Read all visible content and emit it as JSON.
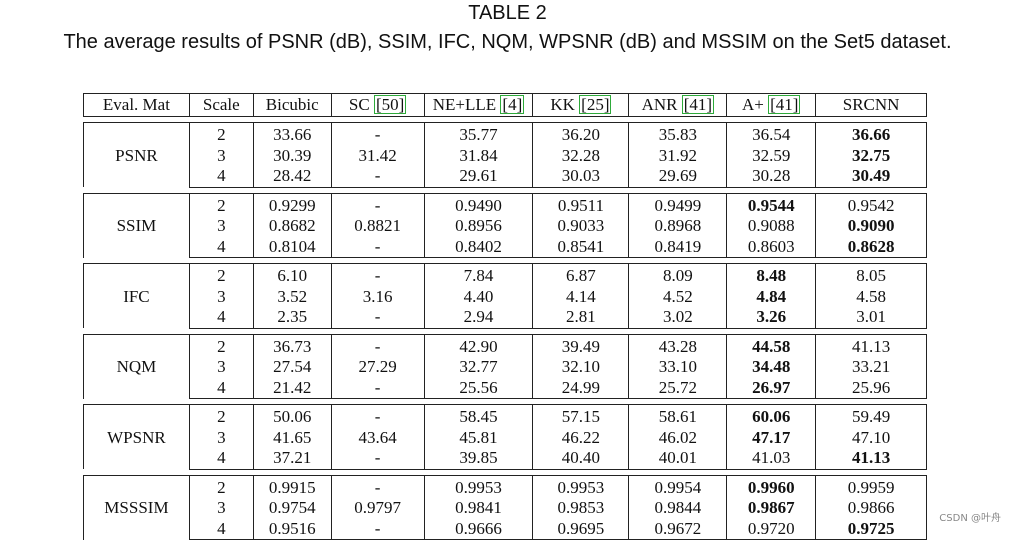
{
  "caption": {
    "label": "TABLE 2",
    "text": "The average results of PSNR (dB), SSIM, IFC, NQM, WPSNR (dB) and MSSIM on the Set5 dataset."
  },
  "table": {
    "headers": [
      {
        "text": "Eval. Mat",
        "ref": ""
      },
      {
        "text": "Scale",
        "ref": ""
      },
      {
        "text": "Bicubic",
        "ref": ""
      },
      {
        "text": "SC ",
        "ref": "[50]"
      },
      {
        "text": "NE+LLE ",
        "ref": "[4]"
      },
      {
        "text": "KK ",
        "ref": "[25]"
      },
      {
        "text": "ANR ",
        "ref": "[41]"
      },
      {
        "text": "A+ ",
        "ref": "[41]"
      },
      {
        "text": "SRCNN",
        "ref": ""
      }
    ],
    "groups": [
      {
        "metric": "PSNR",
        "rows": [
          {
            "scale": "2",
            "values": [
              "33.66",
              "-",
              "35.77",
              "36.20",
              "35.83",
              "36.54",
              "36.66"
            ],
            "bold": [
              6
            ]
          },
          {
            "scale": "3",
            "values": [
              "30.39",
              "31.42",
              "31.84",
              "32.28",
              "31.92",
              "32.59",
              "32.75"
            ],
            "bold": [
              6
            ]
          },
          {
            "scale": "4",
            "values": [
              "28.42",
              "-",
              "29.61",
              "30.03",
              "29.69",
              "30.28",
              "30.49"
            ],
            "bold": [
              6
            ]
          }
        ]
      },
      {
        "metric": "SSIM",
        "rows": [
          {
            "scale": "2",
            "values": [
              "0.9299",
              "-",
              "0.9490",
              "0.9511",
              "0.9499",
              "0.9544",
              "0.9542"
            ],
            "bold": [
              5
            ]
          },
          {
            "scale": "3",
            "values": [
              "0.8682",
              "0.8821",
              "0.8956",
              "0.9033",
              "0.8968",
              "0.9088",
              "0.9090"
            ],
            "bold": [
              6
            ]
          },
          {
            "scale": "4",
            "values": [
              "0.8104",
              "-",
              "0.8402",
              "0.8541",
              "0.8419",
              "0.8603",
              "0.8628"
            ],
            "bold": [
              6
            ]
          }
        ]
      },
      {
        "metric": "IFC",
        "rows": [
          {
            "scale": "2",
            "values": [
              "6.10",
              "-",
              "7.84",
              "6.87",
              "8.09",
              "8.48",
              "8.05"
            ],
            "bold": [
              5
            ]
          },
          {
            "scale": "3",
            "values": [
              "3.52",
              "3.16",
              "4.40",
              "4.14",
              "4.52",
              "4.84",
              "4.58"
            ],
            "bold": [
              5
            ]
          },
          {
            "scale": "4",
            "values": [
              "2.35",
              "-",
              "2.94",
              "2.81",
              "3.02",
              "3.26",
              "3.01"
            ],
            "bold": [
              5
            ]
          }
        ]
      },
      {
        "metric": "NQM",
        "rows": [
          {
            "scale": "2",
            "values": [
              "36.73",
              "-",
              "42.90",
              "39.49",
              "43.28",
              "44.58",
              "41.13"
            ],
            "bold": [
              5
            ]
          },
          {
            "scale": "3",
            "values": [
              "27.54",
              "27.29",
              "32.77",
              "32.10",
              "33.10",
              "34.48",
              "33.21"
            ],
            "bold": [
              5
            ]
          },
          {
            "scale": "4",
            "values": [
              "21.42",
              "-",
              "25.56",
              "24.99",
              "25.72",
              "26.97",
              "25.96"
            ],
            "bold": [
              5
            ]
          }
        ]
      },
      {
        "metric": "WPSNR",
        "rows": [
          {
            "scale": "2",
            "values": [
              "50.06",
              "-",
              "58.45",
              "57.15",
              "58.61",
              "60.06",
              "59.49"
            ],
            "bold": [
              5
            ]
          },
          {
            "scale": "3",
            "values": [
              "41.65",
              "43.64",
              "45.81",
              "46.22",
              "46.02",
              "47.17",
              "47.10"
            ],
            "bold": [
              5
            ]
          },
          {
            "scale": "4",
            "values": [
              "37.21",
              "-",
              "39.85",
              "40.40",
              "40.01",
              "41.03",
              "41.13"
            ],
            "bold": [
              6
            ]
          }
        ]
      },
      {
        "metric": "MSSSIM",
        "rows": [
          {
            "scale": "2",
            "values": [
              "0.9915",
              "-",
              "0.9953",
              "0.9953",
              "0.9954",
              "0.9960",
              "0.9959"
            ],
            "bold": [
              5
            ]
          },
          {
            "scale": "3",
            "values": [
              "0.9754",
              "0.9797",
              "0.9841",
              "0.9853",
              "0.9844",
              "0.9867",
              "0.9866"
            ],
            "bold": [
              5
            ]
          },
          {
            "scale": "4",
            "values": [
              "0.9516",
              "-",
              "0.9666",
              "0.9695",
              "0.9672",
              "0.9720",
              "0.9725"
            ],
            "bold": [
              6
            ]
          }
        ]
      }
    ]
  },
  "watermark": "CSDN @叶舟"
}
